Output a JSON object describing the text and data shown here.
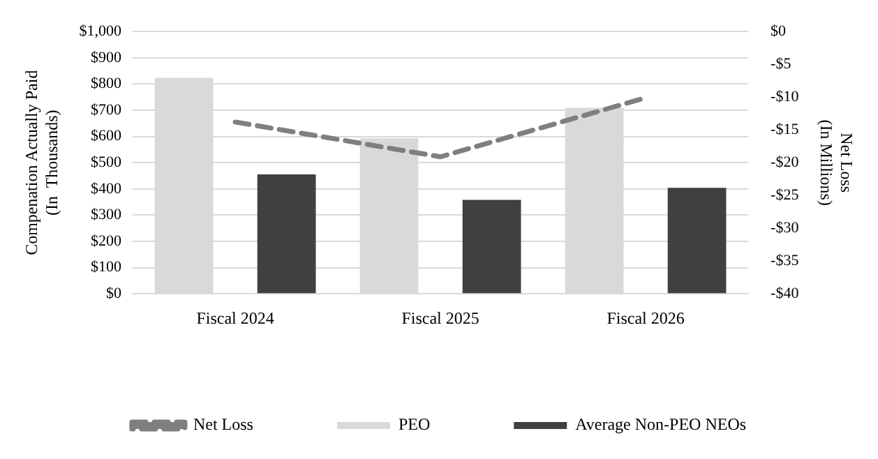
{
  "chart_data": {
    "type": "bar",
    "categories": [
      "Fiscal 2024",
      "Fiscal 2025",
      "Fiscal 2026"
    ],
    "ylabel": "Compenation Actually Paid\n(In  Thousands)",
    "y2label": "Net Loss\n(In Millions)",
    "series": [
      {
        "name": "PEO",
        "color": "#d9d9d9",
        "values": [
          824,
          593,
          709
        ]
      },
      {
        "name": "Average Non-PEO NEOs",
        "color": "#404040",
        "values": [
          455,
          358,
          404
        ]
      },
      {
        "name": "Net Loss",
        "type": "line",
        "axis": "y2",
        "color": "#7f7f7f",
        "line_style": "dashed",
        "marker": "none",
        "values": [
          -13.8,
          -19.1,
          -10.1
        ]
      }
    ],
    "ylim": [
      0,
      1000
    ],
    "yticks": [
      {
        "value": 0,
        "label": "$0"
      },
      {
        "value": 100,
        "label": "$100"
      },
      {
        "value": 200,
        "label": "$200"
      },
      {
        "value": 300,
        "label": "$300"
      },
      {
        "value": 400,
        "label": "$400"
      },
      {
        "value": 500,
        "label": "$500"
      },
      {
        "value": 600,
        "label": "$600"
      },
      {
        "value": 700,
        "label": "$700"
      },
      {
        "value": 800,
        "label": "$800"
      },
      {
        "value": 900,
        "label": "$900"
      },
      {
        "value": 1000,
        "label": "$1,000"
      }
    ],
    "y2lim": [
      -40,
      0
    ],
    "y2ticks": [
      {
        "value": -40,
        "label": "-$40"
      },
      {
        "value": -35,
        "label": "-$35"
      },
      {
        "value": -30,
        "label": "-$30"
      },
      {
        "value": -25,
        "label": "-$25"
      },
      {
        "value": -20,
        "label": "-$20"
      },
      {
        "value": -15,
        "label": "-$15"
      },
      {
        "value": -10,
        "label": "-$10"
      },
      {
        "value": -5,
        "label": "-$5"
      },
      {
        "value": 0,
        "label": "$0"
      }
    ],
    "grid": "y",
    "legend": "bottom"
  }
}
